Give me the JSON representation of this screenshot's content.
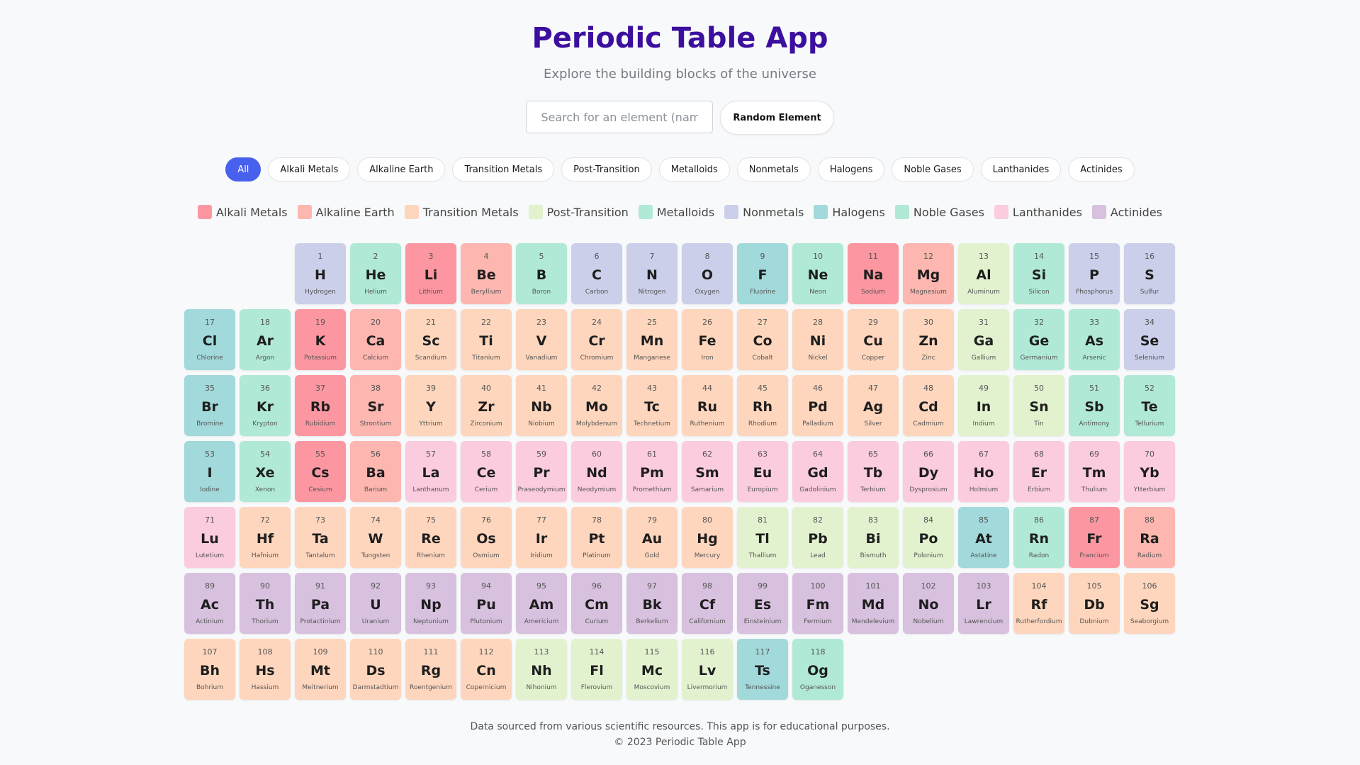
{
  "header": {
    "title": "Periodic Table App",
    "subtitle": "Explore the building blocks of the universe"
  },
  "search": {
    "placeholder": "Search for an element (name, symbol, or number)",
    "value": "",
    "random_label": "Random Element"
  },
  "filters": [
    "All",
    "Alkali Metals",
    "Alkaline Earth",
    "Transition Metals",
    "Post-Transition",
    "Metalloids",
    "Nonmetals",
    "Halogens",
    "Noble Gases",
    "Lanthanides",
    "Actinides"
  ],
  "active_filter": "All",
  "legend": [
    {
      "key": "alkali",
      "label": "Alkali Metals"
    },
    {
      "key": "alkaline",
      "label": "Alkaline Earth"
    },
    {
      "key": "transition",
      "label": "Transition Metals"
    },
    {
      "key": "post",
      "label": "Post-Transition"
    },
    {
      "key": "metalloid",
      "label": "Metalloids"
    },
    {
      "key": "nonmetal",
      "label": "Nonmetals"
    },
    {
      "key": "halogen",
      "label": "Halogens"
    },
    {
      "key": "noble",
      "label": "Noble Gases"
    },
    {
      "key": "lanthanide",
      "label": "Lanthanides"
    },
    {
      "key": "actinide",
      "label": "Actinides"
    }
  ],
  "colors": {
    "alkali": "#fc97a1",
    "alkaline": "#fdb6b0",
    "transition": "#fed6bd",
    "post": "#e2f2cf",
    "metalloid": "#b0e9d6",
    "nonmetal": "#cbcfe9",
    "halogen": "#a2d9da",
    "noble": "#b0e9d6",
    "lanthanide": "#fbcbdf",
    "actinide": "#d7c1de"
  },
  "elements": [
    {
      "n": 1,
      "s": "H",
      "name": "Hydrogen",
      "c": "nonmetal"
    },
    {
      "n": 2,
      "s": "He",
      "name": "Helium",
      "c": "noble"
    },
    {
      "n": 3,
      "s": "Li",
      "name": "Lithium",
      "c": "alkali"
    },
    {
      "n": 4,
      "s": "Be",
      "name": "Beryllium",
      "c": "alkaline"
    },
    {
      "n": 5,
      "s": "B",
      "name": "Boron",
      "c": "metalloid"
    },
    {
      "n": 6,
      "s": "C",
      "name": "Carbon",
      "c": "nonmetal"
    },
    {
      "n": 7,
      "s": "N",
      "name": "Nitrogen",
      "c": "nonmetal"
    },
    {
      "n": 8,
      "s": "O",
      "name": "Oxygen",
      "c": "nonmetal"
    },
    {
      "n": 9,
      "s": "F",
      "name": "Fluorine",
      "c": "halogen"
    },
    {
      "n": 10,
      "s": "Ne",
      "name": "Neon",
      "c": "noble"
    },
    {
      "n": 11,
      "s": "Na",
      "name": "Sodium",
      "c": "alkali"
    },
    {
      "n": 12,
      "s": "Mg",
      "name": "Magnesium",
      "c": "alkaline"
    },
    {
      "n": 13,
      "s": "Al",
      "name": "Aluminum",
      "c": "post"
    },
    {
      "n": 14,
      "s": "Si",
      "name": "Silicon",
      "c": "metalloid"
    },
    {
      "n": 15,
      "s": "P",
      "name": "Phosphorus",
      "c": "nonmetal"
    },
    {
      "n": 16,
      "s": "S",
      "name": "Sulfur",
      "c": "nonmetal"
    },
    {
      "n": 17,
      "s": "Cl",
      "name": "Chlorine",
      "c": "halogen"
    },
    {
      "n": 18,
      "s": "Ar",
      "name": "Argon",
      "c": "noble"
    },
    {
      "n": 19,
      "s": "K",
      "name": "Potassium",
      "c": "alkali"
    },
    {
      "n": 20,
      "s": "Ca",
      "name": "Calcium",
      "c": "alkaline"
    },
    {
      "n": 21,
      "s": "Sc",
      "name": "Scandium",
      "c": "transition"
    },
    {
      "n": 22,
      "s": "Ti",
      "name": "Titanium",
      "c": "transition"
    },
    {
      "n": 23,
      "s": "V",
      "name": "Vanadium",
      "c": "transition"
    },
    {
      "n": 24,
      "s": "Cr",
      "name": "Chromium",
      "c": "transition"
    },
    {
      "n": 25,
      "s": "Mn",
      "name": "Manganese",
      "c": "transition"
    },
    {
      "n": 26,
      "s": "Fe",
      "name": "Iron",
      "c": "transition"
    },
    {
      "n": 27,
      "s": "Co",
      "name": "Cobalt",
      "c": "transition"
    },
    {
      "n": 28,
      "s": "Ni",
      "name": "Nickel",
      "c": "transition"
    },
    {
      "n": 29,
      "s": "Cu",
      "name": "Copper",
      "c": "transition"
    },
    {
      "n": 30,
      "s": "Zn",
      "name": "Zinc",
      "c": "transition"
    },
    {
      "n": 31,
      "s": "Ga",
      "name": "Gallium",
      "c": "post"
    },
    {
      "n": 32,
      "s": "Ge",
      "name": "Germanium",
      "c": "metalloid"
    },
    {
      "n": 33,
      "s": "As",
      "name": "Arsenic",
      "c": "metalloid"
    },
    {
      "n": 34,
      "s": "Se",
      "name": "Selenium",
      "c": "nonmetal"
    },
    {
      "n": 35,
      "s": "Br",
      "name": "Bromine",
      "c": "halogen"
    },
    {
      "n": 36,
      "s": "Kr",
      "name": "Krypton",
      "c": "noble"
    },
    {
      "n": 37,
      "s": "Rb",
      "name": "Rubidium",
      "c": "alkali"
    },
    {
      "n": 38,
      "s": "Sr",
      "name": "Strontium",
      "c": "alkaline"
    },
    {
      "n": 39,
      "s": "Y",
      "name": "Yttrium",
      "c": "transition"
    },
    {
      "n": 40,
      "s": "Zr",
      "name": "Zirconium",
      "c": "transition"
    },
    {
      "n": 41,
      "s": "Nb",
      "name": "Niobium",
      "c": "transition"
    },
    {
      "n": 42,
      "s": "Mo",
      "name": "Molybdenum",
      "c": "transition"
    },
    {
      "n": 43,
      "s": "Tc",
      "name": "Technetium",
      "c": "transition"
    },
    {
      "n": 44,
      "s": "Ru",
      "name": "Ruthenium",
      "c": "transition"
    },
    {
      "n": 45,
      "s": "Rh",
      "name": "Rhodium",
      "c": "transition"
    },
    {
      "n": 46,
      "s": "Pd",
      "name": "Palladium",
      "c": "transition"
    },
    {
      "n": 47,
      "s": "Ag",
      "name": "Silver",
      "c": "transition"
    },
    {
      "n": 48,
      "s": "Cd",
      "name": "Cadmium",
      "c": "transition"
    },
    {
      "n": 49,
      "s": "In",
      "name": "Indium",
      "c": "post"
    },
    {
      "n": 50,
      "s": "Sn",
      "name": "Tin",
      "c": "post"
    },
    {
      "n": 51,
      "s": "Sb",
      "name": "Antimony",
      "c": "metalloid"
    },
    {
      "n": 52,
      "s": "Te",
      "name": "Tellurium",
      "c": "metalloid"
    },
    {
      "n": 53,
      "s": "I",
      "name": "Iodine",
      "c": "halogen"
    },
    {
      "n": 54,
      "s": "Xe",
      "name": "Xenon",
      "c": "noble"
    },
    {
      "n": 55,
      "s": "Cs",
      "name": "Cesium",
      "c": "alkali"
    },
    {
      "n": 56,
      "s": "Ba",
      "name": "Barium",
      "c": "alkaline"
    },
    {
      "n": 57,
      "s": "La",
      "name": "Lanthanum",
      "c": "lanthanide"
    },
    {
      "n": 58,
      "s": "Ce",
      "name": "Cerium",
      "c": "lanthanide"
    },
    {
      "n": 59,
      "s": "Pr",
      "name": "Praseodymium",
      "c": "lanthanide"
    },
    {
      "n": 60,
      "s": "Nd",
      "name": "Neodymium",
      "c": "lanthanide"
    },
    {
      "n": 61,
      "s": "Pm",
      "name": "Promethium",
      "c": "lanthanide"
    },
    {
      "n": 62,
      "s": "Sm",
      "name": "Samarium",
      "c": "lanthanide"
    },
    {
      "n": 63,
      "s": "Eu",
      "name": "Europium",
      "c": "lanthanide"
    },
    {
      "n": 64,
      "s": "Gd",
      "name": "Gadolinium",
      "c": "lanthanide"
    },
    {
      "n": 65,
      "s": "Tb",
      "name": "Terbium",
      "c": "lanthanide"
    },
    {
      "n": 66,
      "s": "Dy",
      "name": "Dysprosium",
      "c": "lanthanide"
    },
    {
      "n": 67,
      "s": "Ho",
      "name": "Holmium",
      "c": "lanthanide"
    },
    {
      "n": 68,
      "s": "Er",
      "name": "Erbium",
      "c": "lanthanide"
    },
    {
      "n": 69,
      "s": "Tm",
      "name": "Thulium",
      "c": "lanthanide"
    },
    {
      "n": 70,
      "s": "Yb",
      "name": "Ytterbium",
      "c": "lanthanide"
    },
    {
      "n": 71,
      "s": "Lu",
      "name": "Lutetium",
      "c": "lanthanide"
    },
    {
      "n": 72,
      "s": "Hf",
      "name": "Hafnium",
      "c": "transition"
    },
    {
      "n": 73,
      "s": "Ta",
      "name": "Tantalum",
      "c": "transition"
    },
    {
      "n": 74,
      "s": "W",
      "name": "Tungsten",
      "c": "transition"
    },
    {
      "n": 75,
      "s": "Re",
      "name": "Rhenium",
      "c": "transition"
    },
    {
      "n": 76,
      "s": "Os",
      "name": "Osmium",
      "c": "transition"
    },
    {
      "n": 77,
      "s": "Ir",
      "name": "Iridium",
      "c": "transition"
    },
    {
      "n": 78,
      "s": "Pt",
      "name": "Platinum",
      "c": "transition"
    },
    {
      "n": 79,
      "s": "Au",
      "name": "Gold",
      "c": "transition"
    },
    {
      "n": 80,
      "s": "Hg",
      "name": "Mercury",
      "c": "transition"
    },
    {
      "n": 81,
      "s": "Tl",
      "name": "Thallium",
      "c": "post"
    },
    {
      "n": 82,
      "s": "Pb",
      "name": "Lead",
      "c": "post"
    },
    {
      "n": 83,
      "s": "Bi",
      "name": "Bismuth",
      "c": "post"
    },
    {
      "n": 84,
      "s": "Po",
      "name": "Polonium",
      "c": "post"
    },
    {
      "n": 85,
      "s": "At",
      "name": "Astatine",
      "c": "halogen"
    },
    {
      "n": 86,
      "s": "Rn",
      "name": "Radon",
      "c": "noble"
    },
    {
      "n": 87,
      "s": "Fr",
      "name": "Francium",
      "c": "alkali"
    },
    {
      "n": 88,
      "s": "Ra",
      "name": "Radium",
      "c": "alkaline"
    },
    {
      "n": 89,
      "s": "Ac",
      "name": "Actinium",
      "c": "actinide"
    },
    {
      "n": 90,
      "s": "Th",
      "name": "Thorium",
      "c": "actinide"
    },
    {
      "n": 91,
      "s": "Pa",
      "name": "Protactinium",
      "c": "actinide"
    },
    {
      "n": 92,
      "s": "U",
      "name": "Uranium",
      "c": "actinide"
    },
    {
      "n": 93,
      "s": "Np",
      "name": "Neptunium",
      "c": "actinide"
    },
    {
      "n": 94,
      "s": "Pu",
      "name": "Plutonium",
      "c": "actinide"
    },
    {
      "n": 95,
      "s": "Am",
      "name": "Americium",
      "c": "actinide"
    },
    {
      "n": 96,
      "s": "Cm",
      "name": "Curium",
      "c": "actinide"
    },
    {
      "n": 97,
      "s": "Bk",
      "name": "Berkelium",
      "c": "actinide"
    },
    {
      "n": 98,
      "s": "Cf",
      "name": "Californium",
      "c": "actinide"
    },
    {
      "n": 99,
      "s": "Es",
      "name": "Einsteinium",
      "c": "actinide"
    },
    {
      "n": 100,
      "s": "Fm",
      "name": "Fermium",
      "c": "actinide"
    },
    {
      "n": 101,
      "s": "Md",
      "name": "Mendelevium",
      "c": "actinide"
    },
    {
      "n": 102,
      "s": "No",
      "name": "Nobelium",
      "c": "actinide"
    },
    {
      "n": 103,
      "s": "Lr",
      "name": "Lawrencium",
      "c": "actinide"
    },
    {
      "n": 104,
      "s": "Rf",
      "name": "Rutherfordium",
      "c": "transition"
    },
    {
      "n": 105,
      "s": "Db",
      "name": "Dubnium",
      "c": "transition"
    },
    {
      "n": 106,
      "s": "Sg",
      "name": "Seaborgium",
      "c": "transition"
    },
    {
      "n": 107,
      "s": "Bh",
      "name": "Bohrium",
      "c": "transition"
    },
    {
      "n": 108,
      "s": "Hs",
      "name": "Hassium",
      "c": "transition"
    },
    {
      "n": 109,
      "s": "Mt",
      "name": "Meitnerium",
      "c": "transition"
    },
    {
      "n": 110,
      "s": "Ds",
      "name": "Darmstadtium",
      "c": "transition"
    },
    {
      "n": 111,
      "s": "Rg",
      "name": "Roentgenium",
      "c": "transition"
    },
    {
      "n": 112,
      "s": "Cn",
      "name": "Copernicium",
      "c": "transition"
    },
    {
      "n": 113,
      "s": "Nh",
      "name": "Nihonium",
      "c": "post"
    },
    {
      "n": 114,
      "s": "Fl",
      "name": "Flerovium",
      "c": "post"
    },
    {
      "n": 115,
      "s": "Mc",
      "name": "Moscovium",
      "c": "post"
    },
    {
      "n": 116,
      "s": "Lv",
      "name": "Livermorium",
      "c": "post"
    },
    {
      "n": 117,
      "s": "Ts",
      "name": "Tennessine",
      "c": "halogen"
    },
    {
      "n": 118,
      "s": "Og",
      "name": "Oganesson",
      "c": "noble"
    }
  ],
  "footer": {
    "line1": "Data sourced from various scientific resources. This app is for educational purposes.",
    "line2": "© 2023 Periodic Table App"
  }
}
